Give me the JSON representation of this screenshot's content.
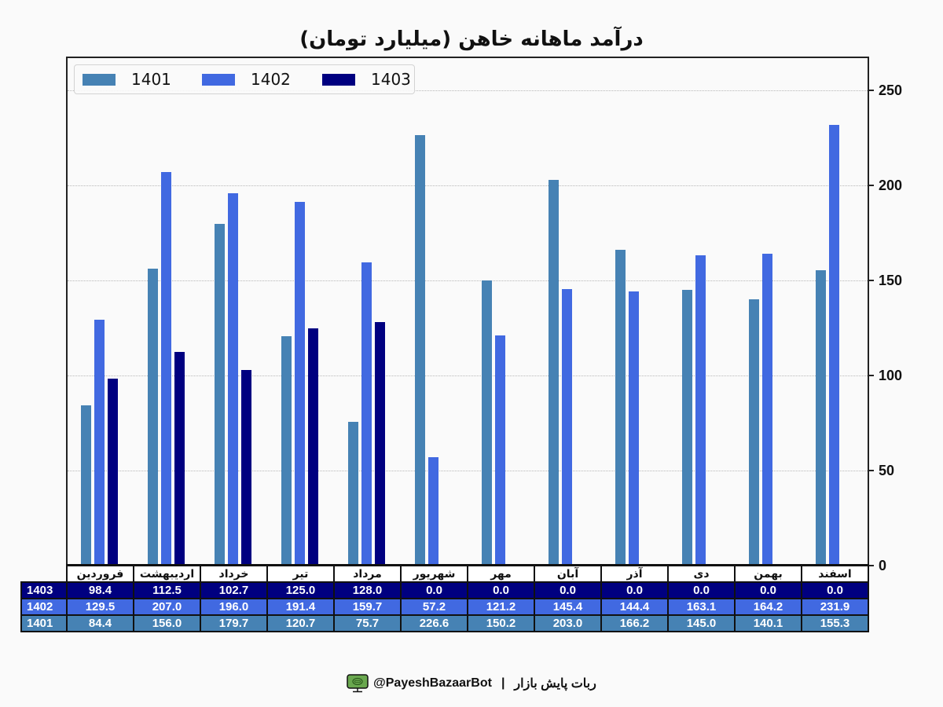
{
  "title": "درآمد ماهانه خاهن (میلیارد تومان)",
  "legend": [
    {
      "label": "1401",
      "color": "#4682b4"
    },
    {
      "label": "1402",
      "color": "#4169e1"
    },
    {
      "label": "1403",
      "color": "#000080"
    }
  ],
  "y_axis": {
    "ticks": [
      "0",
      "50",
      "100",
      "150",
      "200",
      "250"
    ],
    "position": "right"
  },
  "table": {
    "months": [
      "فروردین",
      "اردیبهشت",
      "خرداد",
      "تیر",
      "مرداد",
      "شهریور",
      "مهر",
      "آبان",
      "آذر",
      "دی",
      "بهمن",
      "اسفند"
    ],
    "rows": [
      {
        "label": "1403",
        "values": [
          "98.4",
          "112.5",
          "102.7",
          "125.0",
          "128.0",
          "0.0",
          "0.0",
          "0.0",
          "0.0",
          "0.0",
          "0.0",
          "0.0"
        ]
      },
      {
        "label": "1402",
        "values": [
          "129.5",
          "207.0",
          "196.0",
          "191.4",
          "159.7",
          "57.2",
          "121.2",
          "145.4",
          "144.4",
          "163.1",
          "164.2",
          "231.9"
        ]
      },
      {
        "label": "1401",
        "values": [
          "84.4",
          "156.0",
          "179.7",
          "120.7",
          "75.7",
          "226.6",
          "150.2",
          "203.0",
          "166.2",
          "145.0",
          "140.1",
          "155.3"
        ]
      }
    ]
  },
  "footer": {
    "bot_handle": "@PayeshBazaarBot",
    "separator": "|",
    "bot_name": "ربات پایش بازار"
  },
  "chart_data": {
    "type": "bar",
    "title": "درآمد ماهانه خاهن (میلیارد تومان)",
    "xlabel": "",
    "ylabel": "",
    "ylim": [
      0,
      268
    ],
    "y_ticks": [
      0,
      50,
      100,
      150,
      200,
      250
    ],
    "y_axis_position": "right",
    "grid": "horizontal dotted",
    "legend_position": "upper left",
    "categories": [
      "فروردین",
      "اردیبهشت",
      "خرداد",
      "تیر",
      "مرداد",
      "شهریور",
      "مهر",
      "آبان",
      "آذر",
      "دی",
      "بهمن",
      "اسفند"
    ],
    "series": [
      {
        "name": "1401",
        "color": "#4682b4",
        "values": [
          84.4,
          156.0,
          179.7,
          120.7,
          75.7,
          226.6,
          150.2,
          203.0,
          166.2,
          145.0,
          140.1,
          155.3
        ]
      },
      {
        "name": "1402",
        "color": "#4169e1",
        "values": [
          129.5,
          207.0,
          196.0,
          191.4,
          159.7,
          57.2,
          121.2,
          145.4,
          144.4,
          163.1,
          164.2,
          231.9
        ]
      },
      {
        "name": "1403",
        "color": "#000080",
        "values": [
          98.4,
          112.5,
          102.7,
          125.0,
          128.0,
          0.0,
          0.0,
          0.0,
          0.0,
          0.0,
          0.0,
          0.0
        ]
      }
    ],
    "table_below": true
  }
}
